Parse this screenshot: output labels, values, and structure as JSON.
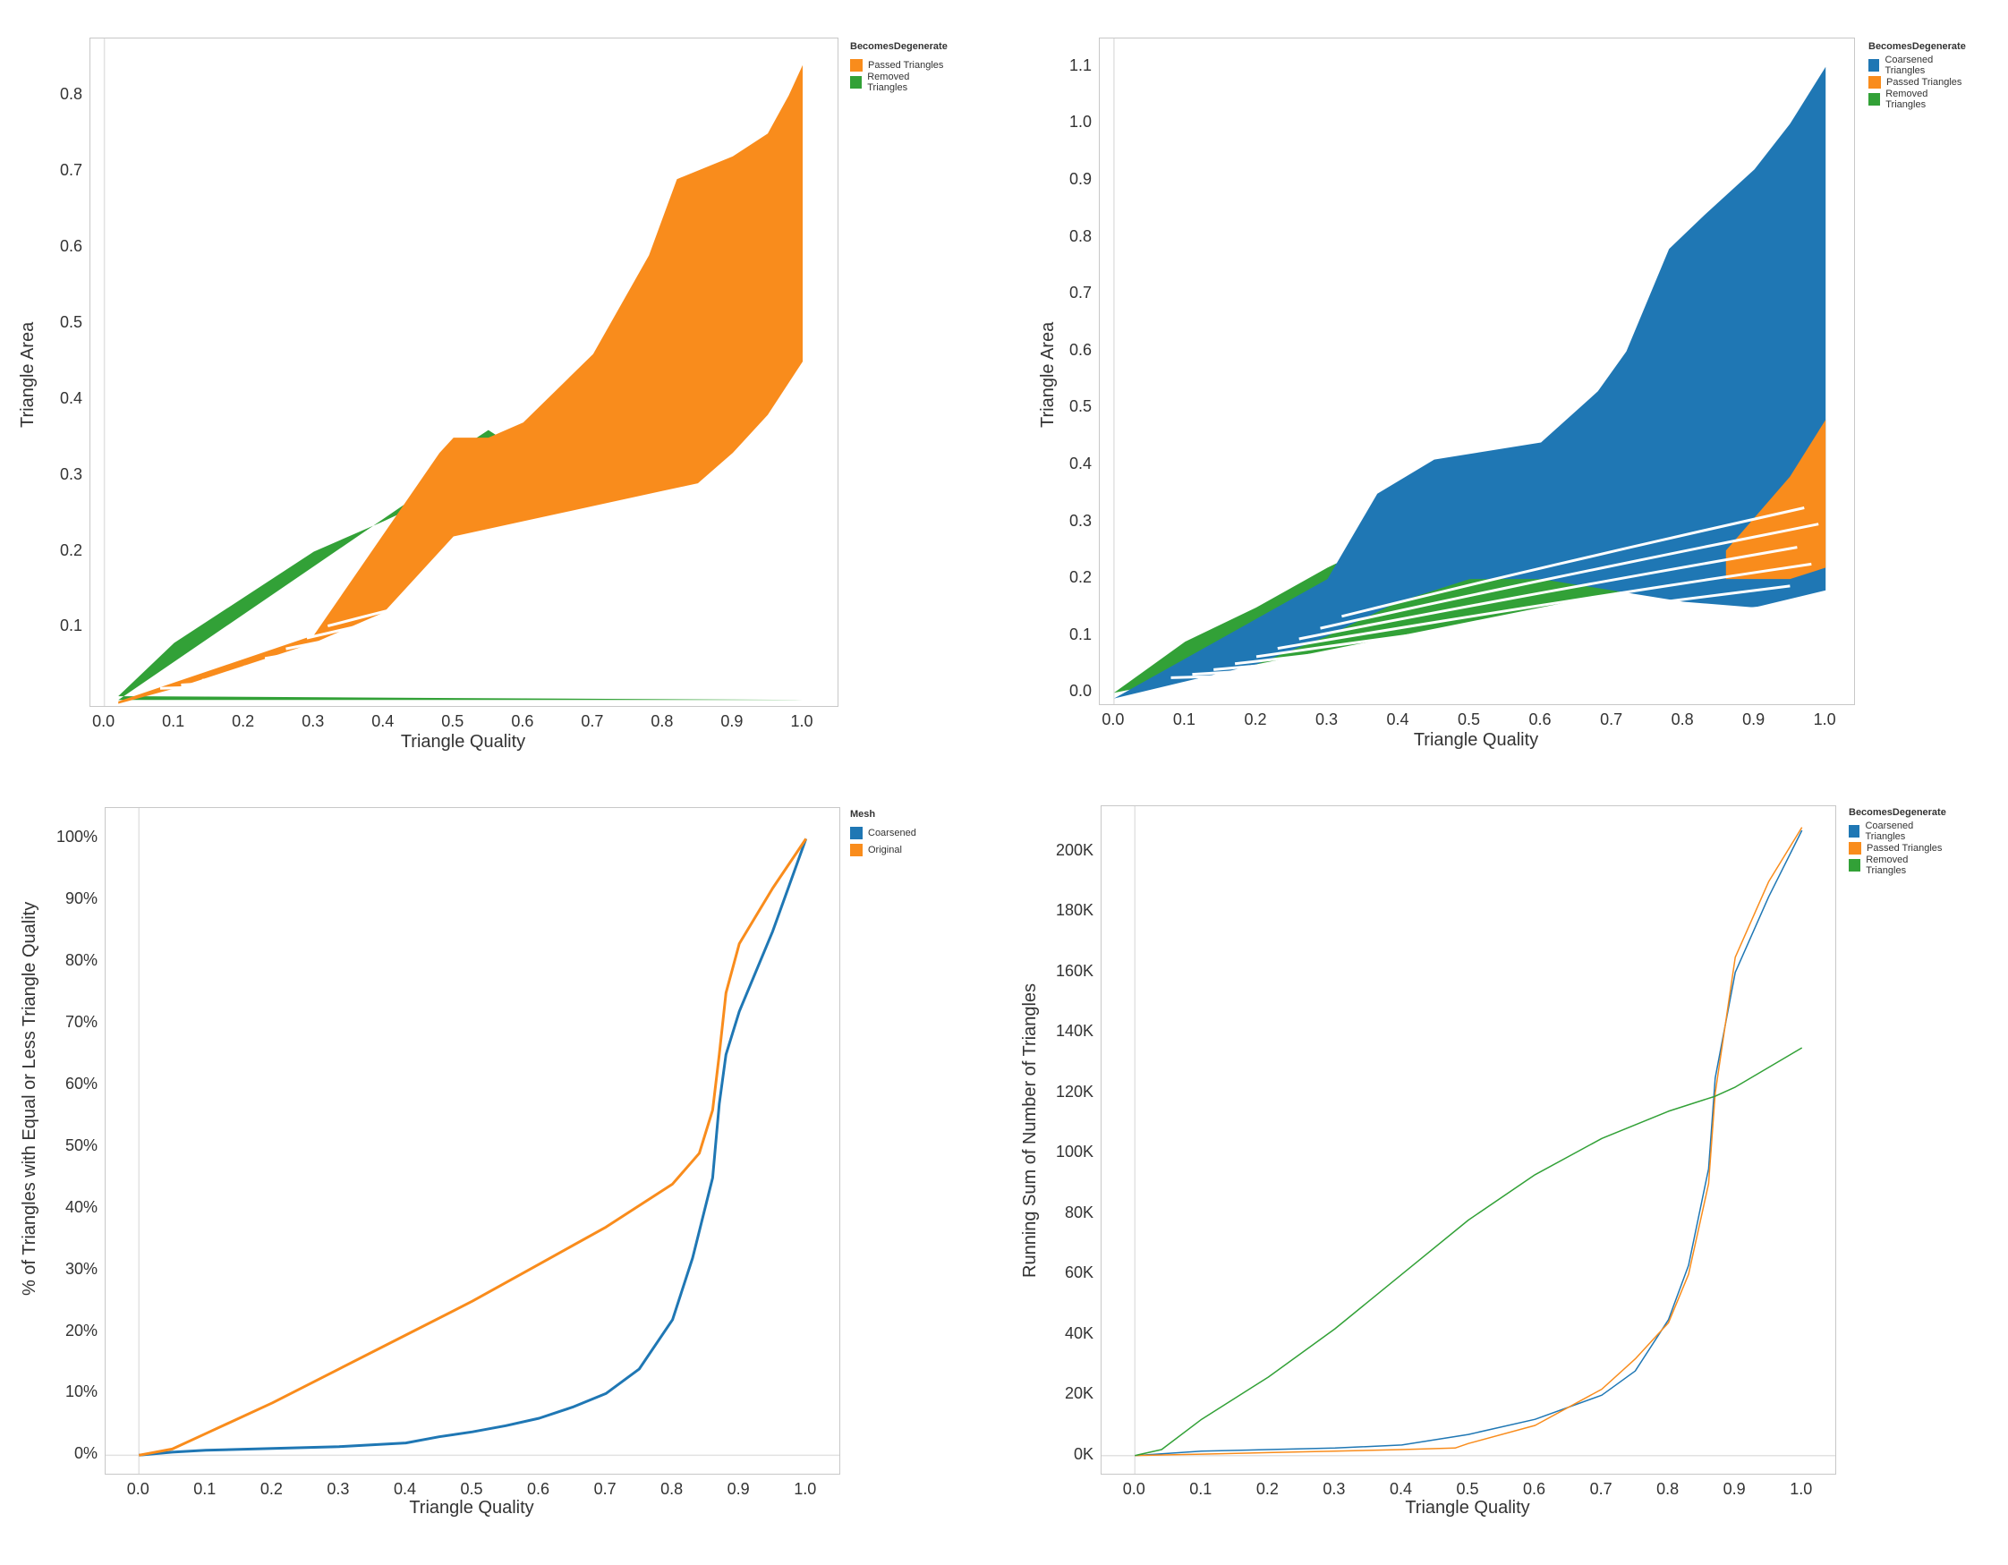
{
  "chart_data": [
    {
      "id": "tl",
      "type": "scatter",
      "xlabel": "Triangle Quality",
      "ylabel": "Triangle Area",
      "xlim": [
        -0.02,
        1.05
      ],
      "ylim": [
        -0.003,
        0.875
      ],
      "xticks": [
        "0.0",
        "0.1",
        "0.2",
        "0.3",
        "0.4",
        "0.5",
        "0.6",
        "0.7",
        "0.8",
        "0.9",
        "1.0"
      ],
      "yticks": [
        "0.1",
        "0.2",
        "0.3",
        "0.4",
        "0.5",
        "0.6",
        "0.7",
        "0.8"
      ],
      "legend": {
        "title": "BecomesDegenerate",
        "position": "top-right",
        "items": [
          {
            "label": "Passed Triangles",
            "color": "#f98c1c"
          },
          {
            "label": "Removed Triangles",
            "color": "#32a137"
          }
        ]
      },
      "series": [
        {
          "label": "Removed Triangles",
          "color": "#32a137",
          "upper": [
            [
              0.02,
              0.01
            ],
            [
              0.1,
              0.08
            ],
            [
              0.2,
              0.14
            ],
            [
              0.3,
              0.2
            ],
            [
              0.4,
              0.24
            ],
            [
              0.47,
              0.27
            ],
            [
              0.5,
              0.33
            ],
            [
              0.55,
              0.36
            ],
            [
              0.6,
              0.33
            ],
            [
              0.7,
              0.3
            ],
            [
              0.8,
              0.34
            ],
            [
              0.9,
              0.4
            ],
            [
              1.0,
              0.62
            ]
          ],
          "lower": [
            [
              0.02,
              0.005
            ],
            [
              1.0,
              0.005
            ]
          ]
        },
        {
          "label": "Passed Triangles",
          "color": "#f98c1c",
          "upper": [
            [
              0.02,
              0.003
            ],
            [
              0.3,
              0.09
            ],
            [
              0.48,
              0.33
            ],
            [
              0.5,
              0.35
            ],
            [
              0.55,
              0.35
            ],
            [
              0.6,
              0.37
            ],
            [
              0.7,
              0.46
            ],
            [
              0.78,
              0.59
            ],
            [
              0.82,
              0.69
            ],
            [
              0.9,
              0.72
            ],
            [
              0.95,
              0.75
            ],
            [
              0.98,
              0.8
            ],
            [
              1.0,
              0.84
            ]
          ],
          "lower": [
            [
              1.0,
              0.45
            ],
            [
              0.95,
              0.38
            ],
            [
              0.9,
              0.33
            ],
            [
              0.85,
              0.29
            ],
            [
              0.8,
              0.28
            ],
            [
              0.7,
              0.26
            ],
            [
              0.6,
              0.24
            ],
            [
              0.5,
              0.22
            ],
            [
              0.4,
              0.12
            ],
            [
              0.3,
              0.08
            ],
            [
              0.2,
              0.05
            ],
            [
              0.1,
              0.02
            ],
            [
              0.02,
              0.0
            ]
          ]
        }
      ]
    },
    {
      "id": "tr",
      "type": "scatter",
      "xlabel": "Triangle Quality",
      "ylabel": "Triangle Area",
      "xlim": [
        -0.02,
        1.04
      ],
      "ylim": [
        -0.02,
        1.15
      ],
      "xticks": [
        "0.0",
        "0.1",
        "0.2",
        "0.3",
        "0.4",
        "0.5",
        "0.6",
        "0.7",
        "0.8",
        "0.9",
        "1.0"
      ],
      "yticks": [
        "0.0",
        "0.1",
        "0.2",
        "0.3",
        "0.4",
        "0.5",
        "0.6",
        "0.7",
        "0.8",
        "0.9",
        "1.0",
        "1.1"
      ],
      "legend": {
        "title": "BecomesDegenerate",
        "position": "top-right",
        "items": [
          {
            "label": "Coarsened Triangles",
            "color": "#1f77b4"
          },
          {
            "label": "Passed Triangles",
            "color": "#f98c1c"
          },
          {
            "label": "Removed Triangles",
            "color": "#32a137"
          }
        ]
      },
      "series": [
        {
          "label": "Removed Triangles",
          "color": "#32a137",
          "upper": [
            [
              0.0,
              0.0
            ],
            [
              0.1,
              0.09
            ],
            [
              0.2,
              0.15
            ],
            [
              0.3,
              0.22
            ],
            [
              0.4,
              0.28
            ],
            [
              0.5,
              0.26
            ],
            [
              0.6,
              0.24
            ],
            [
              0.7,
              0.2
            ],
            [
              0.8,
              0.18
            ],
            [
              0.9,
              0.2
            ],
            [
              1.0,
              0.25
            ]
          ],
          "lower": [
            [
              0.0,
              0.0
            ],
            [
              1.0,
              0.0
            ]
          ]
        },
        {
          "label": "Coarsened Triangles",
          "color": "#1f77b4",
          "upper": [
            [
              0.0,
              -0.01
            ],
            [
              0.3,
              0.2
            ],
            [
              0.37,
              0.35
            ],
            [
              0.45,
              0.41
            ],
            [
              0.6,
              0.44
            ],
            [
              0.68,
              0.53
            ],
            [
              0.72,
              0.6
            ],
            [
              0.78,
              0.78
            ],
            [
              0.83,
              0.84
            ],
            [
              0.9,
              0.92
            ],
            [
              0.95,
              1.0
            ],
            [
              1.0,
              1.1
            ]
          ],
          "lower": [
            [
              1.0,
              0.18
            ],
            [
              0.9,
              0.15
            ],
            [
              0.8,
              0.16
            ],
            [
              0.7,
              0.18
            ],
            [
              0.6,
              0.2
            ],
            [
              0.5,
              0.2
            ],
            [
              0.4,
              0.16
            ],
            [
              0.3,
              0.1
            ],
            [
              0.2,
              0.05
            ],
            [
              0.1,
              0.02
            ],
            [
              0.0,
              -0.01
            ]
          ]
        },
        {
          "label": "Passed Triangles",
          "color": "#f98c1c",
          "upper": [
            [
              0.86,
              0.25
            ],
            [
              0.95,
              0.38
            ],
            [
              1.0,
              0.48
            ]
          ],
          "lower": [
            [
              1.0,
              0.22
            ],
            [
              0.95,
              0.2
            ],
            [
              0.86,
              0.2
            ]
          ]
        }
      ]
    },
    {
      "id": "bl",
      "type": "line",
      "xlabel": "Triangle Quality",
      "ylabel": "% of Triangles with Equal or Less Triangle Quality",
      "xlim": [
        -0.05,
        1.05
      ],
      "ylim": [
        -3,
        105
      ],
      "xticks": [
        "0.0",
        "0.1",
        "0.2",
        "0.3",
        "0.4",
        "0.5",
        "0.6",
        "0.7",
        "0.8",
        "0.9",
        "1.0"
      ],
      "yticks": [
        "0%",
        "10%",
        "20%",
        "30%",
        "40%",
        "50%",
        "60%",
        "70%",
        "80%",
        "90%",
        "100%"
      ],
      "legend": {
        "title": "Mesh",
        "position": "top-right",
        "items": [
          {
            "label": "Coarsened",
            "color": "#1f77b4"
          },
          {
            "label": "Original",
            "color": "#f98c1c"
          }
        ]
      },
      "series": [
        {
          "label": "Coarsened",
          "color": "#1f77b4",
          "points": [
            [
              0.0,
              0
            ],
            [
              0.05,
              0.5
            ],
            [
              0.1,
              0.8
            ],
            [
              0.2,
              1.1
            ],
            [
              0.3,
              1.4
            ],
            [
              0.4,
              2
            ],
            [
              0.45,
              3
            ],
            [
              0.5,
              3.8
            ],
            [
              0.55,
              4.8
            ],
            [
              0.6,
              6
            ],
            [
              0.65,
              7.8
            ],
            [
              0.7,
              10
            ],
            [
              0.75,
              14
            ],
            [
              0.8,
              22
            ],
            [
              0.83,
              32
            ],
            [
              0.86,
              45
            ],
            [
              0.87,
              57
            ],
            [
              0.88,
              65
            ],
            [
              0.9,
              72
            ],
            [
              0.95,
              85
            ],
            [
              1.0,
              100
            ]
          ]
        },
        {
          "label": "Original",
          "color": "#f98c1c",
          "points": [
            [
              0.0,
              0
            ],
            [
              0.05,
              1
            ],
            [
              0.1,
              3.5
            ],
            [
              0.2,
              8.5
            ],
            [
              0.3,
              14
            ],
            [
              0.4,
              19.5
            ],
            [
              0.5,
              25
            ],
            [
              0.6,
              31
            ],
            [
              0.7,
              37
            ],
            [
              0.8,
              44
            ],
            [
              0.84,
              49
            ],
            [
              0.86,
              56
            ],
            [
              0.87,
              65
            ],
            [
              0.88,
              75
            ],
            [
              0.9,
              83
            ],
            [
              0.95,
              92
            ],
            [
              1.0,
              100
            ]
          ]
        }
      ]
    },
    {
      "id": "br",
      "type": "line",
      "xlabel": "Triangle Quality",
      "ylabel": "Running Sum of Number of Triangles",
      "xlim": [
        -0.05,
        1.05
      ],
      "ylim": [
        -6000,
        215000
      ],
      "xticks": [
        "0.0",
        "0.1",
        "0.2",
        "0.3",
        "0.4",
        "0.5",
        "0.6",
        "0.7",
        "0.8",
        "0.9",
        "1.0"
      ],
      "yticks": [
        "0K",
        "20K",
        "40K",
        "60K",
        "80K",
        "100K",
        "120K",
        "140K",
        "160K",
        "180K",
        "200K"
      ],
      "legend": {
        "title": "BecomesDegenerate",
        "position": "top-right",
        "items": [
          {
            "label": "Coarsened Triangles",
            "color": "#1f77b4"
          },
          {
            "label": "Passed Triangles",
            "color": "#f98c1c"
          },
          {
            "label": "Removed Triangles",
            "color": "#32a137"
          }
        ]
      },
      "series": [
        {
          "label": "Coarsened Triangles",
          "color": "#1f77b4",
          "points": [
            [
              0.0,
              0
            ],
            [
              0.1,
              1500
            ],
            [
              0.2,
              2000
            ],
            [
              0.3,
              2500
            ],
            [
              0.4,
              3500
            ],
            [
              0.5,
              7000
            ],
            [
              0.6,
              12000
            ],
            [
              0.7,
              20000
            ],
            [
              0.75,
              28000
            ],
            [
              0.8,
              45000
            ],
            [
              0.83,
              63000
            ],
            [
              0.86,
              95000
            ],
            [
              0.87,
              125000
            ],
            [
              0.9,
              160000
            ],
            [
              0.95,
              185000
            ],
            [
              1.0,
              207000
            ]
          ]
        },
        {
          "label": "Passed Triangles",
          "color": "#f98c1c",
          "points": [
            [
              0.0,
              0
            ],
            [
              0.1,
              500
            ],
            [
              0.2,
              1000
            ],
            [
              0.3,
              1500
            ],
            [
              0.4,
              2000
            ],
            [
              0.48,
              2500
            ],
            [
              0.5,
              4000
            ],
            [
              0.6,
              10000
            ],
            [
              0.7,
              22000
            ],
            [
              0.75,
              32000
            ],
            [
              0.8,
              44000
            ],
            [
              0.83,
              60000
            ],
            [
              0.86,
              90000
            ],
            [
              0.87,
              120000
            ],
            [
              0.9,
              165000
            ],
            [
              0.95,
              190000
            ],
            [
              1.0,
              208000
            ]
          ]
        },
        {
          "label": "Removed Triangles",
          "color": "#32a137",
          "points": [
            [
              0.0,
              0
            ],
            [
              0.04,
              2000
            ],
            [
              0.1,
              12000
            ],
            [
              0.2,
              26000
            ],
            [
              0.3,
              42000
            ],
            [
              0.4,
              60000
            ],
            [
              0.5,
              78000
            ],
            [
              0.6,
              93000
            ],
            [
              0.7,
              105000
            ],
            [
              0.8,
              114000
            ],
            [
              0.87,
              119000
            ],
            [
              0.9,
              122000
            ],
            [
              1.0,
              135000
            ]
          ]
        }
      ]
    }
  ]
}
